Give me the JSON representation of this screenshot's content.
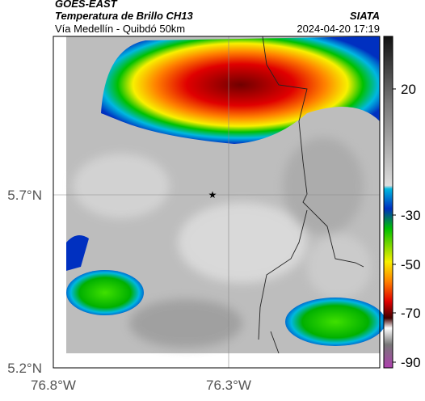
{
  "header": {
    "satellite": "GOES-EAST",
    "product": "Temperatura de Brillo CH13",
    "location": "Vía Medellín - Quibdó 50km",
    "source": "SIATA",
    "datetime": "2024-04-20 17:19"
  },
  "axes": {
    "lat_labels": [
      "5.7°N",
      "5.2°N"
    ],
    "lon_labels": [
      "76.8°W",
      "76.3°W"
    ]
  },
  "colorbar": {
    "ticks": [
      20,
      -30,
      -50,
      -70,
      -90
    ]
  }
}
